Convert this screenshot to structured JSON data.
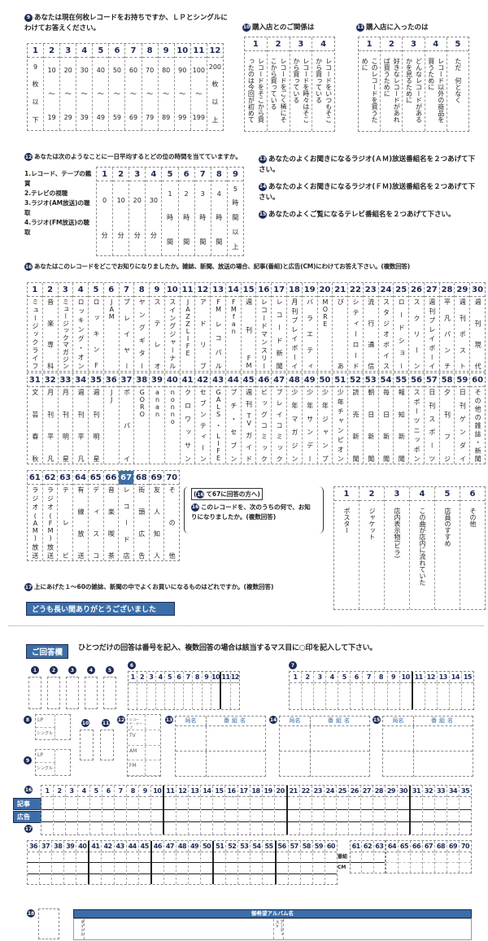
{
  "q9": {
    "num": "9",
    "title": "あなたは現在何枚レコードをお持ちですか、ＬＰとシングルにわけてお答えください。",
    "options": [
      {
        "n": "1",
        "t": [
          "9",
          "枚",
          "以",
          "下"
        ]
      },
      {
        "n": "2",
        "t": [
          "10",
          "〜",
          "19"
        ]
      },
      {
        "n": "3",
        "t": [
          "20",
          "〜",
          "29"
        ]
      },
      {
        "n": "4",
        "t": [
          "30",
          "〜",
          "39"
        ]
      },
      {
        "n": "5",
        "t": [
          "40",
          "〜",
          "49"
        ]
      },
      {
        "n": "6",
        "t": [
          "50",
          "〜",
          "59"
        ]
      },
      {
        "n": "7",
        "t": [
          "60",
          "〜",
          "69"
        ]
      },
      {
        "n": "8",
        "t": [
          "70",
          "〜",
          "79"
        ]
      },
      {
        "n": "9",
        "t": [
          "80",
          "〜",
          "89"
        ]
      },
      {
        "n": "10",
        "t": [
          "90",
          "〜",
          "99"
        ]
      },
      {
        "n": "11",
        "t": [
          "100",
          "〜",
          "199"
        ]
      },
      {
        "n": "12",
        "t": [
          "200",
          "枚",
          "以",
          "上"
        ]
      }
    ]
  },
  "q10": {
    "num": "10",
    "title": "購入店とのご関係は",
    "options": [
      {
        "n": "1",
        "t": "レコードをそこから買ったのは今回が初めて"
      },
      {
        "n": "2",
        "t": "レコードをごく稀にそこから買っている"
      },
      {
        "n": "3",
        "t": "レコードを時々はそこから買っている"
      },
      {
        "n": "4",
        "t": "レコードをいつもそこから買っている"
      }
    ]
  },
  "q11": {
    "num": "11",
    "title": "購入店に入ったのは",
    "options": [
      {
        "n": "1",
        "t": "このレコードを買うために"
      },
      {
        "n": "2",
        "t": "好きなレコードがあれば買うために"
      },
      {
        "n": "3",
        "t": "どんなレコードがあるかを見るために"
      },
      {
        "n": "4",
        "t": "レコード以外の商品を買うために"
      },
      {
        "n": "5",
        "t": "ただ　何となく"
      }
    ]
  },
  "q12": {
    "num": "12",
    "title": "あなたは次のようなことに一日平均するとどの位の時間を当てていますか。",
    "items": [
      "1.レコード、テープの鑑賞",
      "2.テレビの視聴",
      "3.ラジオ(AM放送)の聴取",
      "4.ラジオ(FM放送)の聴取"
    ],
    "options": [
      {
        "n": "1",
        "t": [
          "0",
          "分"
        ]
      },
      {
        "n": "2",
        "t": [
          "10",
          "分"
        ]
      },
      {
        "n": "3",
        "t": [
          "20",
          "分"
        ]
      },
      {
        "n": "4",
        "t": [
          "30",
          "分"
        ]
      },
      {
        "n": "5",
        "t": [
          "1",
          "時",
          "間"
        ]
      },
      {
        "n": "6",
        "t": [
          "2",
          "時",
          "間"
        ]
      },
      {
        "n": "7",
        "t": [
          "3",
          "時",
          "間"
        ]
      },
      {
        "n": "8",
        "t": [
          "4",
          "時",
          "間"
        ]
      },
      {
        "n": "9",
        "t": [
          "5",
          "時",
          "間",
          "以",
          "上"
        ]
      }
    ]
  },
  "q13": {
    "num": "13",
    "title": "あなたのよくお聞きになるラジオ(ＡＭ)放送番組名を２つあげて下さい。"
  },
  "q14": {
    "num": "14",
    "title": "あなたのよくお聞きになるラジオ(ＦＭ)放送番組名を２つあげて下さい。"
  },
  "q15": {
    "num": "15",
    "title": "あなたのよくご覧になるテレビ番組名を２つあげて下さい。"
  },
  "q16": {
    "num": "16",
    "title": "あなたはこのレコードをどこでお知りになりましたか。雑誌、新聞、放送の場合、記事(番組)と広告(CM)にわけてお答え下さい。(複数回答)",
    "selected": "67",
    "options": [
      "ミュージックライフ",
      "音楽専科",
      "ミュージックマガジン",
      "ロッキング・オン",
      "ロッキンF",
      "JAM",
      "プレイヤー",
      "ヤングギター",
      "ステレオ",
      "スイングジャーナル",
      "JAZZLIFE",
      "アドリブ",
      "FMレコパル",
      "FMfan",
      "週刊FM",
      "レコードマンスリー",
      "レコード新聞",
      "月刊プレイボーイ",
      "バラエティ",
      "MORE",
      "ぴあ",
      "シティーロード",
      "流行通信",
      "スタジオボイス",
      "ロードショー",
      "スクリーン",
      "週刊プレイボーイ",
      "平凡パンチ",
      "週刊ポスト",
      "週刊現代",
      "文芸春秋",
      "月刊平凡",
      "月刊明星",
      "週刊平凡",
      "週刊明星",
      "JJ",
      "ポパイ",
      "GORO",
      "anan",
      "nonno",
      "クロワッサン",
      "セブンティーン",
      "GALS・LIFE",
      "プチ・セブン",
      "週刊TVガイド",
      "ビッグコミック",
      "プレイコミック",
      "少年マガジン",
      "少年サンデー",
      "少年ジャンプ",
      "少年チャンピオン",
      "読売新聞",
      "朝日新聞",
      "毎日新聞",
      "報知新聞",
      "スポーツニッポン",
      "日刊スポーツ",
      "夕刊フジ",
      "日刊ゲンダイ",
      "その他の雑誌・新聞",
      "ラジオ(AM)放送",
      "ラジオ(FM)放送",
      "テレビ",
      "有線放送",
      "ディスコ",
      "音楽喫茶",
      "レコード店",
      "街頭広告",
      "友人知人",
      "その他"
    ]
  },
  "q16sub": {
    "note_num": "16",
    "note": "て67に回答の方へ",
    "num": "16",
    "title": "このレコードを、次のうちの何で、お知りになりましたか。(複数回答)",
    "options": [
      {
        "n": "1",
        "t": "ポスター"
      },
      {
        "n": "2",
        "t": "ジャケット"
      },
      {
        "n": "3",
        "t": "店内表示物(ビラ)"
      },
      {
        "n": "4",
        "t": "この曲が店内に流れていた"
      },
      {
        "n": "5",
        "t": "店員のすすめ"
      },
      {
        "n": "6",
        "t": "その他"
      }
    ]
  },
  "q17": {
    "num": "17",
    "title": "上にあげた１〜60の雑誌、新聞の中でよくお買いになるものはどれですか。(複数回答)"
  },
  "thanks": "どうも長い間ありがとうございました",
  "answer": {
    "banner": "ご回答欄",
    "instruction": "ひとつだけの回答は番号を記入、複数回答の場合は該当するマス目に○印を記入して下さい。",
    "single": [
      "1",
      "2",
      "3",
      "4",
      "5"
    ],
    "q6": {
      "num": "6",
      "cols": [
        "1",
        "2",
        "3",
        "4",
        "5",
        "6",
        "7",
        "8",
        "9",
        "10",
        "11",
        "12"
      ]
    },
    "q7": {
      "num": "7",
      "cols": [
        "1",
        "2",
        "3",
        "4",
        "5",
        "6",
        "7",
        "8",
        "9",
        "10",
        "11",
        "12",
        "13",
        "14",
        "15"
      ]
    },
    "q8": {
      "num": "8",
      "rows": [
        "LP",
        "シングル"
      ]
    },
    "q9": {
      "num": "9",
      "rows": [
        "LP",
        "シングル"
      ]
    },
    "q10": "10",
    "q11": "11",
    "q12": {
      "num": "12",
      "rows": [
        "レコード・テープ",
        "TV",
        "AM",
        "FM"
      ]
    },
    "radio": [
      {
        "num": "13",
        "station": "局名",
        "program": "番組名"
      },
      {
        "num": "14",
        "station": "局名",
        "program": "番組名"
      },
      {
        "num": "15",
        "station": "局名",
        "program": "番組名"
      }
    ],
    "q16_num": "16",
    "q17_num": "17",
    "article": "記事",
    "ad": "広告",
    "program_short": "番組",
    "cm": "CM",
    "grid1": [
      "1",
      "2",
      "3",
      "4",
      "5",
      "6",
      "7",
      "8",
      "9",
      "10",
      "11",
      "12",
      "13",
      "14",
      "15",
      "16",
      "17",
      "18",
      "19",
      "20",
      "21",
      "22",
      "23",
      "24",
      "25",
      "26",
      "27",
      "28",
      "29",
      "30",
      "31",
      "32",
      "33",
      "34",
      "35"
    ],
    "grid2": [
      "36",
      "37",
      "38",
      "39",
      "40",
      "41",
      "42",
      "43",
      "44",
      "45",
      "46",
      "47",
      "48",
      "49",
      "50",
      "51",
      "52",
      "53",
      "54",
      "55",
      "56",
      "57",
      "58",
      "59",
      "60"
    ],
    "grid3": [
      "61",
      "62",
      "63"
    ],
    "grid4": [
      "64",
      "65",
      "66",
      "67",
      "68",
      "69",
      "70"
    ],
    "q18": {
      "num": "18",
      "album": "御希望アルバム名",
      "title_label": "タイトル",
      "artist_label": "アーティスト"
    }
  },
  "colors": {
    "accent": "#3b6ea8",
    "dark": "#1d2b55"
  }
}
